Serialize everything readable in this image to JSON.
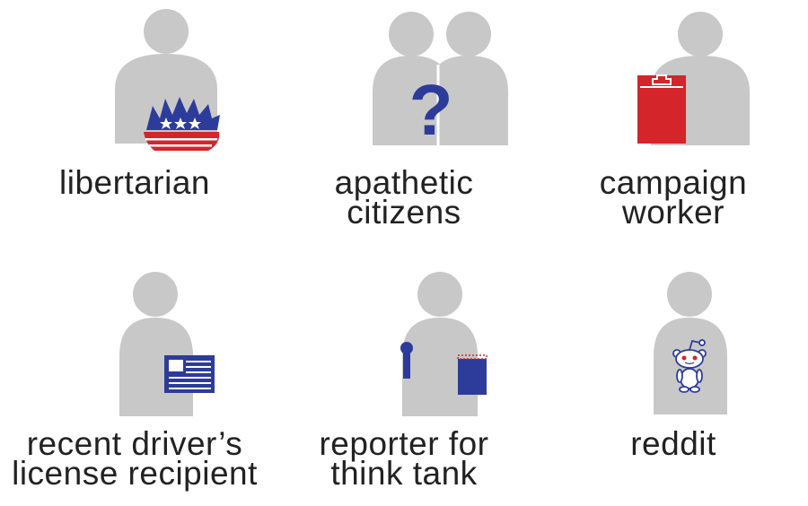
{
  "colors": {
    "figure_gray": "#c8c8c8",
    "accent_red": "#d3252a",
    "accent_blue": "#2d3c9a",
    "text": "#222222"
  },
  "personas": [
    {
      "id": "libertarian",
      "lines": [
        "libertarian"
      ],
      "icon": "porcupine-icon"
    },
    {
      "id": "apathetic",
      "lines": [
        "apathetic",
        "citizens"
      ],
      "icon": "question-mark-icon"
    },
    {
      "id": "campaign",
      "lines": [
        "campaign",
        "worker"
      ],
      "icon": "clipboard-icon"
    },
    {
      "id": "license",
      "lines": [
        "recent driver’s",
        "license recipient"
      ],
      "icon": "license-card-icon"
    },
    {
      "id": "reporter",
      "lines": [
        "reporter for",
        "think tank"
      ],
      "icon": "microphone-notepad-icon"
    },
    {
      "id": "reddit",
      "lines": [
        "reddit"
      ],
      "icon": "reddit-alien-icon"
    }
  ]
}
